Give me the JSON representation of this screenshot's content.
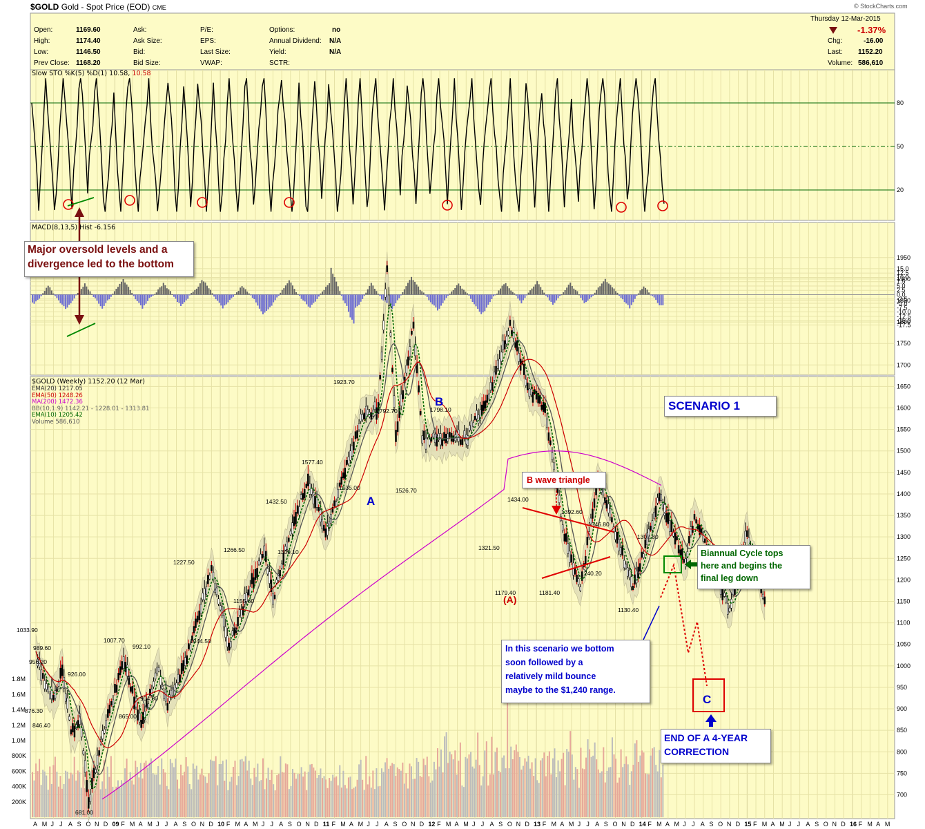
{
  "header": {
    "symbol": "$GOLD",
    "name": "Gold - Spot Price (EOD)",
    "exchange": "CME",
    "logo": "© StockCharts.com",
    "date": "Thursday  12-Mar-2015",
    "change_pct": "-1.37%",
    "fields": {
      "open_label": "Open:",
      "open": "1169.60",
      "high_label": "High:",
      "high": "1174.40",
      "low_label": "Low:",
      "low": "1146.50",
      "prev_label": "Prev Close:",
      "prev": "1168.20",
      "ask_label": "Ask:",
      "asksize_label": "Ask Size:",
      "bid_label": "Bid:",
      "bidsize_label": "Bid Size:",
      "pe_label": "P/E:",
      "eps_label": "EPS:",
      "lastsize_label": "Last Size:",
      "vwap_label": "VWAP:",
      "options_label": "Options:",
      "options": "no",
      "dividend_label": "Annual Dividend:",
      "dividend": "N/A",
      "yield_label": "Yield:",
      "yield": "N/A",
      "sctr_label": "SCTR:",
      "chg_label": "Chg:",
      "chg": "-16.00",
      "last_label": "Last:",
      "last": "1152.20",
      "volume_label": "Volume:",
      "volume": "586,610"
    }
  },
  "panels": {
    "sto_title": "Slow STO %K(5) %D(1) 10.58,",
    "sto_value": "10.58",
    "macd_title": "MACD(8,13,5) Hist -6.156",
    "price_title": "$GOLD (Weekly) 1152.20 (12 Mar)",
    "legend": [
      {
        "text": "EMA(20) 1217.05",
        "color": "#555555"
      },
      {
        "text": "EMA(50) 1248.26",
        "color": "#cc0000"
      },
      {
        "text": "MA(200) 1472.36",
        "color": "#cc00cc"
      },
      {
        "text": "BB(10,1.9) 1142.21 - 1228.01 - 1313.81",
        "color": "#777777"
      },
      {
        "text": "EMA(10) 1205.42",
        "color": "#006600"
      },
      {
        "text": "Volume 586,610",
        "color": "#555555"
      }
    ]
  },
  "annotations": {
    "oversold_line1": "Major oversold levels and a",
    "oversold_line2": "divergence led to the bottom",
    "scenario": "SCENARIO 1",
    "b_triangle": "B wave triangle",
    "cycle": [
      "Biannual Cycle tops",
      "here and begins the",
      "final leg down"
    ],
    "bottom": [
      "In this scenario we bottom",
      "soon followed by a",
      "relatively mild bounce",
      "maybe to the $1,240 range."
    ],
    "end": [
      "END OF A 4-YEAR",
      "CORRECTION"
    ],
    "wave_a": "A",
    "wave_b": "B",
    "wave_c": "C",
    "wave_pa": "(A)"
  },
  "colors": {
    "background": "#fdfbc6",
    "grid": "#e6e2a6",
    "price_line": "#000000",
    "ema20": "#555555",
    "ema50": "#cc0000",
    "ma200": "#cc00cc",
    "ema10": "#006600",
    "hist_pos": "#666666",
    "hist_neg": "#6e6ed2",
    "volume_up": "#bcbcbc",
    "volume_down": "#e6a89a",
    "annotation_red": "#cc0000",
    "annotation_blue": "#0000cc",
    "annotation_green": "#006600"
  },
  "chart_data": {
    "type": "line",
    "price_axis_ticks": [
      700,
      750,
      800,
      850,
      900,
      950,
      1000,
      1050,
      1100,
      1150,
      1200,
      1250,
      1300,
      1350,
      1400,
      1450,
      1500,
      1550,
      1600,
      1650,
      1700,
      1750,
      1800,
      1850,
      1900,
      1950
    ],
    "volume_axis_ticks": [
      "200K",
      "400K",
      "600K",
      "800K",
      "1.0M",
      "1.2M",
      "1.4M",
      "1.6M",
      "1.8M"
    ],
    "sto_axis_ticks": [
      20,
      50,
      80
    ],
    "macd_axis_ticks": [
      "15.0",
      "12.5",
      "10.0",
      "7.5",
      "5.0",
      "2.5",
      "0.0",
      "-2.5",
      "-5.0",
      "-7.5",
      "-10.0",
      "-12.5",
      "-15.0",
      "-17.5"
    ],
    "x_labels": [
      "A",
      "M",
      "J",
      "J",
      "A",
      "S",
      "O",
      "N",
      "D",
      "09",
      "F",
      "M",
      "A",
      "M",
      "J",
      "J",
      "A",
      "S",
      "O",
      "N",
      "D",
      "10",
      "F",
      "M",
      "A",
      "M",
      "J",
      "J",
      "A",
      "S",
      "O",
      "N",
      "D",
      "11",
      "F",
      "M",
      "A",
      "M",
      "J",
      "J",
      "A",
      "S",
      "O",
      "N",
      "D",
      "12",
      "F",
      "M",
      "A",
      "M",
      "J",
      "J",
      "A",
      "S",
      "O",
      "N",
      "D",
      "13",
      "F",
      "M",
      "A",
      "M",
      "J",
      "J",
      "A",
      "S",
      "O",
      "N",
      "D",
      "14",
      "F",
      "M",
      "A",
      "M",
      "J",
      "J",
      "A",
      "S",
      "O",
      "N",
      "D",
      "15",
      "F",
      "M",
      "A",
      "M",
      "J",
      "J",
      "A",
      "S",
      "O",
      "N",
      "D",
      "16",
      "F",
      "M",
      "A",
      "M",
      "J",
      "J",
      "A",
      "S",
      "O",
      "N",
      "D",
      "17",
      "F",
      "M",
      "A",
      "M",
      "J",
      "J",
      "A",
      "S"
    ],
    "price_points": [
      [
        "2008-04",
        1033.9
      ],
      [
        "2008-05",
        956.2
      ],
      [
        "2008-06",
        926
      ],
      [
        "2008-07",
        989.6
      ],
      [
        "2008-08",
        846.4
      ],
      [
        "2008-09",
        876.3
      ],
      [
        "2008-10",
        681.0
      ],
      [
        "2008-11",
        780
      ],
      [
        "2008-12",
        865
      ],
      [
        "2009-02",
        1007.7
      ],
      [
        "2009-04",
        865
      ],
      [
        "2009-06",
        992.1
      ],
      [
        "2009-07",
        904.8
      ],
      [
        "2009-09",
        1010
      ],
      [
        "2009-12",
        1227.5
      ],
      [
        "2010-02",
        1044.5
      ],
      [
        "2010-04",
        1160
      ],
      [
        "2010-06",
        1266.5
      ],
      [
        "2010-07",
        1155.6
      ],
      [
        "2010-09",
        1309.1
      ],
      [
        "2010-11",
        1432.5
      ],
      [
        "2011-01",
        1309.1
      ],
      [
        "2011-04",
        1500
      ],
      [
        "2011-05",
        1577.4
      ],
      [
        "2011-07",
        1600
      ],
      [
        "2011-08",
        1923.7
      ],
      [
        "2011-09",
        1535.0
      ],
      [
        "2011-11",
        1792.7
      ],
      [
        "2011-12",
        1526.7
      ],
      [
        "2012-05",
        1526.7
      ],
      [
        "2012-08",
        1650
      ],
      [
        "2012-10",
        1798.1
      ],
      [
        "2012-12",
        1650
      ],
      [
        "2013-02",
        1600
      ],
      [
        "2013-04",
        1321.5
      ],
      [
        "2013-06",
        1179.4
      ],
      [
        "2013-08",
        1434
      ],
      [
        "2013-12",
        1181.4
      ],
      [
        "2014-03",
        1392.6
      ],
      [
        "2014-06",
        1240.2
      ],
      [
        "2014-07",
        1346.8
      ],
      [
        "2014-11",
        1130.4
      ],
      [
        "2015-01",
        1307.8
      ],
      [
        "2015-03",
        1152.2
      ]
    ],
    "labeled_values": [
      "1033.90",
      "956.20",
      "989.60",
      "926.00",
      "846.40",
      "876.30",
      "681.00",
      "1007.70",
      "992.10",
      "865.00",
      "904.80",
      "1227.50",
      "1044.50",
      "1266.50",
      "1155.60",
      "1432.50",
      "1309.10",
      "1577.40",
      "1535.00",
      "1923.70",
      "1792.70",
      "1526.70",
      "1798.10",
      "1434.00",
      "1321.50",
      "1179.40",
      "1392.60",
      "1346.80",
      "1181.40",
      "1240.20",
      "1307.80",
      "1130.40"
    ],
    "projection": [
      [
        "2015-03",
        1152.2
      ],
      [
        "2015-04",
        1240
      ],
      [
        "2015-07",
        1000
      ],
      [
        "2015-08",
        1070
      ],
      [
        "2015-10",
        900
      ]
    ]
  }
}
